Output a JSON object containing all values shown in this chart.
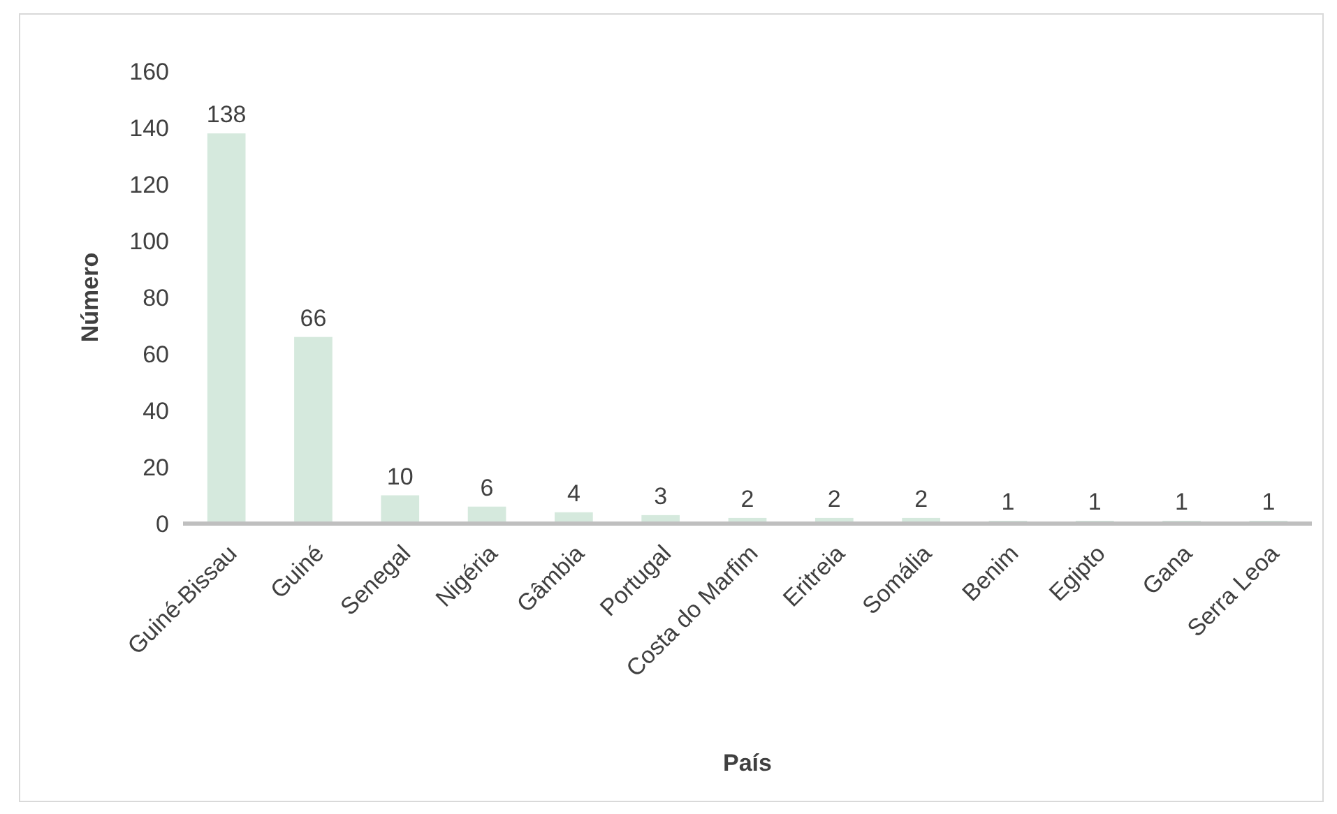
{
  "chart_data": {
    "type": "bar",
    "xlabel": "País",
    "ylabel": "Número",
    "categories": [
      "Guiné-Bissau",
      "Guiné",
      "Senegal",
      "Nigéria",
      "Gâmbia",
      "Portugal",
      "Costa do Marfim",
      "Eritreia",
      "Somália",
      "Benim",
      "Egipto",
      "Gana",
      "Serra Leoa"
    ],
    "values": [
      138,
      66,
      10,
      6,
      4,
      3,
      2,
      2,
      2,
      1,
      1,
      1,
      1
    ],
    "color": "#d5e9dd",
    "ylim": [
      0,
      160
    ],
    "yticks": [
      0,
      20,
      40,
      60,
      80,
      100,
      120,
      140,
      160
    ],
    "grid": false,
    "data_labels": true
  }
}
